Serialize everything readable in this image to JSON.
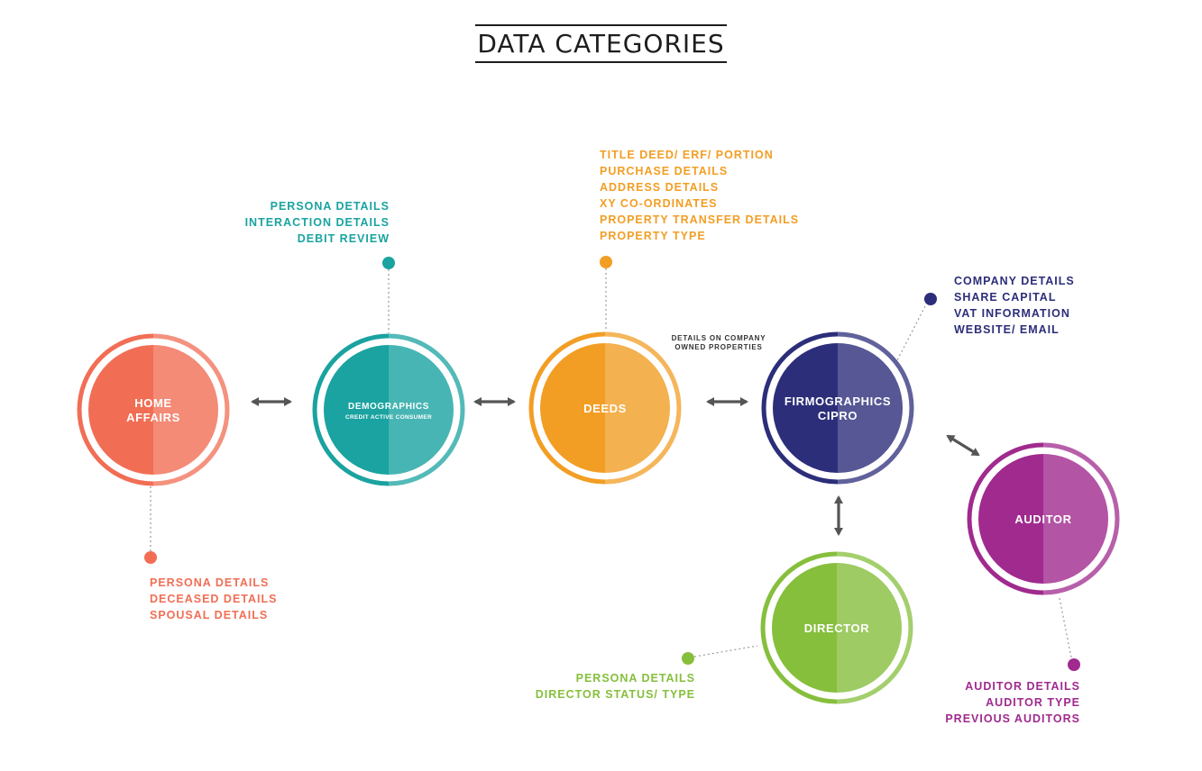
{
  "title": "DATA CATEGORIES",
  "colors": {
    "home_affairs": "#f16e55",
    "demographics": "#1aa3a0",
    "deeds": "#f29e24",
    "firmographics": "#2c2e7a",
    "auditor": "#a02a8e",
    "director": "#86bf3c",
    "arrow": "#555555"
  },
  "nodes": {
    "home_affairs": {
      "label_lines": [
        "HOME",
        "AFFAIRS"
      ]
    },
    "demographics": {
      "label_lines": [
        "DEMOGRAPHICS"
      ],
      "sublabel": "CREDIT ACTIVE CONSUMER"
    },
    "deeds": {
      "label_lines": [
        "DEEDS"
      ]
    },
    "firmographics": {
      "label_lines": [
        "FIRMOGRAPHICS",
        "CIPRO"
      ]
    },
    "auditor": {
      "label_lines": [
        "AUDITOR"
      ]
    },
    "director": {
      "label_lines": [
        "DIRECTOR"
      ]
    }
  },
  "details": {
    "home_affairs": [
      "PERSONA DETAILS",
      "DECEASED DETAILS",
      "SPOUSAL DETAILS"
    ],
    "demographics": [
      "PERSONA DETAILS",
      "INTERACTION DETAILS",
      "DEBIT REVIEW"
    ],
    "deeds": [
      "TITLE DEED/ ERF/ PORTION",
      "PURCHASE DETAILS",
      "ADDRESS DETAILS",
      "XY CO-ORDINATES",
      "PROPERTY TRANSFER DETAILS",
      "PROPERTY TYPE"
    ],
    "firmographics": [
      "COMPANY DETAILS",
      "SHARE CAPITAL",
      "VAT INFORMATION",
      "WEBSITE/ EMAIL"
    ],
    "director": [
      "PERSONA DETAILS",
      "DIRECTOR STATUS/ TYPE"
    ],
    "auditor": [
      "AUDITOR DETAILS",
      "AUDITOR TYPE",
      "PREVIOUS AUDITORS"
    ]
  },
  "link_note": [
    "DETAILS ON COMPANY",
    "OWNED PROPERTIES"
  ]
}
